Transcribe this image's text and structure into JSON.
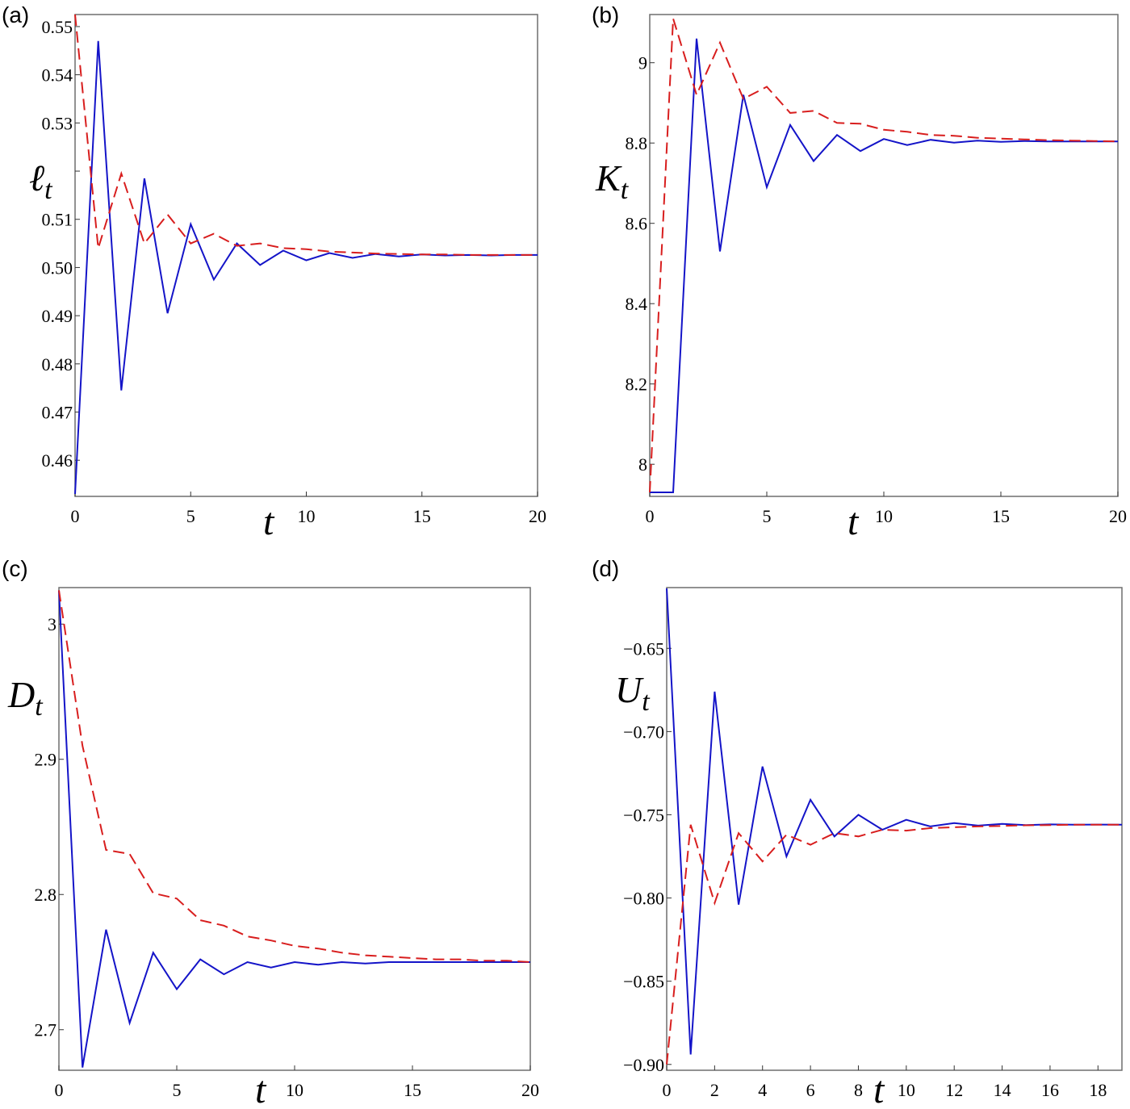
{
  "colors": {
    "series_solid": "#1414c8",
    "series_dashed": "#d81e1e"
  },
  "chart_data": [
    {
      "panel": "(a)",
      "type": "line",
      "ylabel": "ℓ",
      "ylabel_sub": "t",
      "xlabel": "t",
      "xlim": [
        0,
        20
      ],
      "ylim": [
        0.4525,
        0.5525
      ],
      "xticks": [
        0,
        5,
        10,
        15,
        20
      ],
      "xtick_labels": [
        "0",
        "5",
        "10",
        "15",
        "20"
      ],
      "yticks": [
        0.46,
        0.47,
        0.48,
        0.49,
        0.5,
        0.51,
        0.52,
        0.53,
        0.54,
        0.55
      ],
      "ytick_labels": [
        "0.46",
        "0.47",
        "0.48",
        "0.49",
        "0.50",
        "0.51",
        "",
        "0.53",
        "0.54",
        "0.55"
      ],
      "x": [
        0,
        1,
        2,
        3,
        4,
        5,
        6,
        7,
        8,
        9,
        10,
        11,
        12,
        13,
        14,
        15,
        16,
        17,
        18,
        19,
        20
      ],
      "series": [
        {
          "style": "solid",
          "values": [
            0.453,
            0.547,
            0.4745,
            0.5185,
            0.4905,
            0.509,
            0.4975,
            0.505,
            0.5005,
            0.5035,
            0.5015,
            0.503,
            0.502,
            0.5028,
            0.5023,
            0.5027,
            0.5025,
            0.5026,
            0.5025,
            0.5026,
            0.5026
          ]
        },
        {
          "style": "dashed",
          "values": [
            0.5525,
            0.504,
            0.5195,
            0.505,
            0.511,
            0.505,
            0.507,
            0.5045,
            0.505,
            0.504,
            0.5038,
            0.5033,
            0.5031,
            0.5029,
            0.5028,
            0.5027,
            0.5027,
            0.5026,
            0.5026,
            0.5026,
            0.5026
          ]
        }
      ]
    },
    {
      "panel": "(b)",
      "type": "line",
      "ylabel": "K",
      "ylabel_sub": "t",
      "xlabel": "t",
      "xlim": [
        0,
        20
      ],
      "ylim": [
        7.92,
        9.12
      ],
      "xticks": [
        0,
        5,
        10,
        15,
        20
      ],
      "xtick_labels": [
        "0",
        "5",
        "10",
        "15",
        "20"
      ],
      "yticks": [
        8.0,
        8.2,
        8.4,
        8.6,
        8.8,
        9.0
      ],
      "ytick_labels": [
        "8",
        "8.2",
        "8.4",
        "8.6",
        "8.8",
        "9"
      ],
      "x": [
        0,
        1,
        2,
        3,
        4,
        5,
        6,
        7,
        8,
        9,
        10,
        11,
        12,
        13,
        14,
        15,
        16,
        17,
        18,
        19,
        20
      ],
      "series": [
        {
          "style": "solid",
          "values": [
            7.93,
            7.93,
            9.06,
            8.53,
            8.92,
            8.69,
            8.845,
            8.755,
            8.82,
            8.78,
            8.81,
            8.795,
            8.808,
            8.801,
            8.806,
            8.803,
            8.805,
            8.804,
            8.804,
            8.804,
            8.804
          ]
        },
        {
          "style": "dashed",
          "values": [
            7.93,
            9.11,
            8.92,
            9.05,
            8.91,
            8.94,
            8.875,
            8.88,
            8.85,
            8.848,
            8.833,
            8.828,
            8.82,
            8.818,
            8.813,
            8.811,
            8.809,
            8.807,
            8.806,
            8.805,
            8.804
          ]
        }
      ]
    },
    {
      "panel": "(c)",
      "type": "line",
      "ylabel": "D",
      "ylabel_sub": "t",
      "xlabel": "t",
      "xlim": [
        0,
        20
      ],
      "ylim": [
        2.67,
        3.027
      ],
      "xticks": [
        0,
        5,
        10,
        15,
        20
      ],
      "xtick_labels": [
        "0",
        "5",
        "10",
        "15",
        "20"
      ],
      "yticks": [
        2.7,
        2.8,
        2.9,
        3.0
      ],
      "ytick_labels": [
        "2.7",
        "2.8",
        "2.9",
        "3"
      ],
      "x": [
        0,
        1,
        2,
        3,
        4,
        5,
        6,
        7,
        8,
        9,
        10,
        11,
        12,
        13,
        14,
        15,
        16,
        17,
        18,
        19,
        20
      ],
      "series": [
        {
          "style": "solid",
          "values": [
            3.025,
            2.672,
            2.774,
            2.705,
            2.757,
            2.73,
            2.752,
            2.741,
            2.75,
            2.746,
            2.75,
            2.748,
            2.75,
            2.749,
            2.75,
            2.75,
            2.75,
            2.75,
            2.75,
            2.75,
            2.75
          ]
        },
        {
          "style": "dashed",
          "values": [
            3.025,
            2.91,
            2.833,
            2.83,
            2.801,
            2.797,
            2.781,
            2.777,
            2.769,
            2.766,
            2.762,
            2.76,
            2.757,
            2.755,
            2.754,
            2.753,
            2.752,
            2.752,
            2.751,
            2.751,
            2.75
          ]
        }
      ]
    },
    {
      "panel": "(d)",
      "type": "line",
      "ylabel": "U",
      "ylabel_sub": "t",
      "xlabel": "t",
      "xlim": [
        0,
        19
      ],
      "ylim": [
        -0.9035,
        -0.6135
      ],
      "xticks": [
        0,
        2,
        4,
        6,
        8,
        10,
        12,
        14,
        16,
        18
      ],
      "xtick_labels": [
        "0",
        "2",
        "4",
        "6",
        "8",
        "10",
        "12",
        "14",
        "16",
        "18"
      ],
      "yticks": [
        -0.9,
        -0.85,
        -0.8,
        -0.75,
        -0.7,
        -0.65
      ],
      "ytick_labels": [
        "−0.90",
        "−0.85",
        "−0.80",
        "−0.75",
        "−0.70",
        "−0.65"
      ],
      "x": [
        0,
        1,
        2,
        3,
        4,
        5,
        6,
        7,
        8,
        9,
        10,
        11,
        12,
        13,
        14,
        15,
        16,
        17,
        18,
        19
      ],
      "series": [
        {
          "style": "solid",
          "values": [
            -0.614,
            -0.894,
            -0.676,
            -0.804,
            -0.721,
            -0.775,
            -0.741,
            -0.763,
            -0.75,
            -0.759,
            -0.753,
            -0.757,
            -0.755,
            -0.7565,
            -0.7555,
            -0.7562,
            -0.7558,
            -0.756,
            -0.7559,
            -0.756
          ]
        },
        {
          "style": "dashed",
          "values": [
            -0.9,
            -0.756,
            -0.803,
            -0.761,
            -0.778,
            -0.762,
            -0.768,
            -0.761,
            -0.763,
            -0.759,
            -0.7595,
            -0.758,
            -0.7575,
            -0.757,
            -0.7567,
            -0.7563,
            -0.7562,
            -0.756,
            -0.756,
            -0.756
          ]
        }
      ]
    }
  ]
}
